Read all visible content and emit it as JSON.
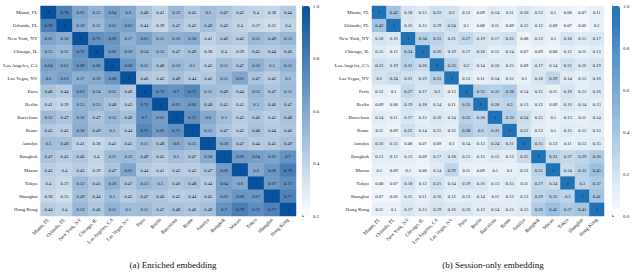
{
  "chart_data": [
    {
      "type": "heatmap",
      "title": "(a) Enriched embedding",
      "categories": [
        "Miami, FL",
        "Orlando, FL",
        "New York, NY",
        "Chicago, IL",
        "Los Angeles, CA",
        "Las Vegas, NV",
        "Paris",
        "Berlin",
        "Barcelona",
        "Rome",
        "Antalya",
        "Bangkok",
        "Macau",
        "Tokyo",
        "Shanghai",
        "Hong Kong"
      ],
      "cells": [
        [
          1.0,
          0.78,
          0.62,
          0.55,
          0.64,
          0.6,
          0.48,
          0.41,
          0.52,
          0.45,
          0.5,
          0.47,
          0.42,
          0.4,
          0.38,
          0.44
        ],
        [
          0.78,
          1.0,
          0.58,
          0.52,
          0.61,
          0.63,
          0.44,
          0.39,
          0.47,
          0.42,
          0.49,
          0.43,
          0.4,
          0.37,
          0.35,
          0.4
        ],
        [
          0.62,
          0.58,
          1.0,
          0.71,
          0.69,
          0.57,
          0.63,
          0.55,
          0.56,
          0.58,
          0.41,
          0.46,
          0.43,
          0.52,
          0.49,
          0.53
        ],
        [
          0.55,
          0.52,
          0.71,
          1.0,
          0.66,
          0.59,
          0.54,
          0.53,
          0.47,
          0.49,
          0.38,
          0.4,
          0.39,
          0.45,
          0.44,
          0.46
        ],
        [
          0.64,
          0.61,
          0.69,
          0.66,
          1.0,
          0.68,
          0.55,
          0.48,
          0.53,
          0.5,
          0.42,
          0.51,
          0.47,
          0.56,
          0.5,
          0.55
        ],
        [
          0.6,
          0.63,
          0.57,
          0.59,
          0.68,
          1.0,
          0.46,
          0.43,
          0.49,
          0.44,
          0.45,
          0.52,
          0.61,
          0.47,
          0.43,
          0.5
        ],
        [
          0.48,
          0.44,
          0.63,
          0.54,
          0.55,
          0.46,
          1.0,
          0.72,
          0.7,
          0.75,
          0.51,
          0.49,
          0.44,
          0.53,
          0.47,
          0.51
        ],
        [
          0.41,
          0.39,
          0.55,
          0.53,
          0.48,
          0.43,
          0.72,
          1.0,
          0.65,
          0.66,
          0.48,
          0.45,
          0.41,
          0.5,
          0.46,
          0.47
        ],
        [
          0.52,
          0.47,
          0.56,
          0.47,
          0.53,
          0.49,
          0.7,
          0.65,
          1.0,
          0.71,
          0.6,
          0.5,
          0.43,
          0.46,
          0.42,
          0.48
        ],
        [
          0.45,
          0.42,
          0.58,
          0.49,
          0.5,
          0.44,
          0.75,
          0.66,
          0.71,
          1.0,
          0.55,
          0.47,
          0.42,
          0.48,
          0.44,
          0.46
        ],
        [
          0.5,
          0.49,
          0.41,
          0.38,
          0.42,
          0.45,
          0.51,
          0.48,
          0.6,
          0.55,
          1.0,
          0.58,
          0.47,
          0.44,
          0.45,
          0.49
        ],
        [
          0.47,
          0.43,
          0.46,
          0.4,
          0.51,
          0.52,
          0.49,
          0.45,
          0.5,
          0.47,
          0.58,
          1.0,
          0.66,
          0.64,
          0.62,
          0.7
        ],
        [
          0.42,
          0.4,
          0.43,
          0.39,
          0.47,
          0.61,
          0.44,
          0.41,
          0.43,
          0.42,
          0.47,
          0.66,
          1.0,
          0.6,
          0.68,
          0.79
        ],
        [
          0.4,
          0.37,
          0.52,
          0.45,
          0.56,
          0.47,
          0.53,
          0.5,
          0.46,
          0.48,
          0.44,
          0.64,
          0.6,
          1.0,
          0.67,
          0.72
        ],
        [
          0.38,
          0.35,
          0.49,
          0.44,
          0.5,
          0.43,
          0.47,
          0.46,
          0.42,
          0.44,
          0.45,
          0.62,
          0.68,
          0.67,
          1.0,
          0.77
        ],
        [
          0.44,
          0.4,
          0.53,
          0.46,
          0.55,
          0.5,
          0.51,
          0.47,
          0.48,
          0.46,
          0.49,
          0.7,
          0.79,
          0.72,
          0.77,
          1.0
        ]
      ],
      "colorbar_range": [
        0.2,
        1
      ],
      "colorbar_ticks": [
        0.2,
        0.4,
        0.6,
        0.8,
        {
          "value": 1,
          "label": "1.0"
        }
      ],
      "color": "#08519c",
      "data_labels": true
    },
    {
      "type": "heatmap",
      "title": "(b) Session-only embedding",
      "categories": [
        "Miami, FL",
        "Orlando, FL",
        "New York, NY",
        "Chicago, IL",
        "Los Angeles, CA",
        "Las Vegas, NV",
        "Paris",
        "Berlin",
        "Barcelona",
        "Rome",
        "Antalya",
        "Bangkok",
        "Macau",
        "Tokyo",
        "Shanghai",
        "Hong Kong"
      ],
      "cells": [
        [
          1.0,
          0.42,
          0.18,
          0.15,
          0.22,
          0.2,
          0.12,
          0.09,
          0.14,
          0.11,
          0.16,
          0.13,
          0.1,
          0.08,
          0.07,
          0.11
        ],
        [
          0.42,
          1.0,
          0.16,
          0.12,
          0.19,
          0.24,
          0.1,
          0.08,
          0.11,
          0.09,
          0.15,
          0.12,
          0.09,
          0.07,
          0.06,
          0.1
        ],
        [
          0.18,
          0.16,
          1.0,
          0.34,
          0.31,
          0.21,
          0.27,
          0.19,
          0.17,
          0.22,
          0.08,
          0.13,
          0.1,
          0.18,
          0.15,
          0.17
        ],
        [
          0.15,
          0.12,
          0.34,
          1.0,
          0.26,
          0.19,
          0.17,
          0.18,
          0.12,
          0.14,
          0.07,
          0.09,
          0.08,
          0.12,
          0.11,
          0.13
        ],
        [
          0.22,
          0.19,
          0.31,
          0.26,
          1.0,
          0.33,
          0.2,
          0.14,
          0.16,
          0.15,
          0.09,
          0.17,
          0.14,
          0.21,
          0.16,
          0.19
        ],
        [
          0.2,
          0.24,
          0.21,
          0.19,
          0.33,
          1.0,
          0.13,
          0.11,
          0.14,
          0.12,
          0.1,
          0.18,
          0.29,
          0.14,
          0.12,
          0.16
        ],
        [
          0.12,
          0.1,
          0.27,
          0.17,
          0.2,
          0.13,
          1.0,
          0.35,
          0.32,
          0.38,
          0.14,
          0.15,
          0.11,
          0.19,
          0.13,
          0.16
        ],
        [
          0.09,
          0.08,
          0.19,
          0.18,
          0.14,
          0.11,
          0.35,
          1.0,
          0.28,
          0.3,
          0.13,
          0.12,
          0.09,
          0.16,
          0.14,
          0.13
        ],
        [
          0.14,
          0.11,
          0.17,
          0.12,
          0.16,
          0.14,
          0.32,
          0.28,
          1.0,
          0.33,
          0.24,
          0.15,
          0.1,
          0.13,
          0.11,
          0.14
        ],
        [
          0.11,
          0.09,
          0.22,
          0.14,
          0.15,
          0.12,
          0.38,
          0.3,
          0.33,
          1.0,
          0.21,
          0.13,
          0.1,
          0.15,
          0.12,
          0.13
        ],
        [
          0.16,
          0.15,
          0.08,
          0.07,
          0.09,
          0.1,
          0.14,
          0.13,
          0.24,
          0.21,
          1.0,
          0.25,
          0.12,
          0.11,
          0.13,
          0.15
        ],
        [
          0.13,
          0.12,
          0.13,
          0.09,
          0.17,
          0.18,
          0.15,
          0.12,
          0.15,
          0.13,
          0.25,
          1.0,
          0.31,
          0.27,
          0.29,
          0.36
        ],
        [
          0.1,
          0.09,
          0.1,
          0.08,
          0.14,
          0.29,
          0.11,
          0.09,
          0.1,
          0.1,
          0.12,
          0.31,
          1.0,
          0.24,
          0.33,
          0.45
        ],
        [
          0.08,
          0.07,
          0.18,
          0.12,
          0.21,
          0.14,
          0.19,
          0.16,
          0.13,
          0.15,
          0.11,
          0.27,
          0.24,
          1.0,
          0.3,
          0.37
        ],
        [
          0.07,
          0.06,
          0.15,
          0.11,
          0.16,
          0.12,
          0.13,
          0.14,
          0.11,
          0.12,
          0.13,
          0.29,
          0.33,
          0.3,
          1.0,
          0.41
        ],
        [
          0.11,
          0.1,
          0.17,
          0.13,
          0.19,
          0.16,
          0.16,
          0.13,
          0.14,
          0.13,
          0.15,
          0.36,
          0.45,
          0.37,
          0.41,
          1.0
        ]
      ],
      "colorbar_range": [
        0,
        1
      ],
      "colorbar_ticks": [
        {
          "value": 0,
          "label": "0.0"
        },
        0.2,
        0.4,
        0.6,
        0.8,
        {
          "value": 1,
          "label": "1.0"
        }
      ],
      "color": "#2171b5",
      "data_labels": true
    }
  ]
}
